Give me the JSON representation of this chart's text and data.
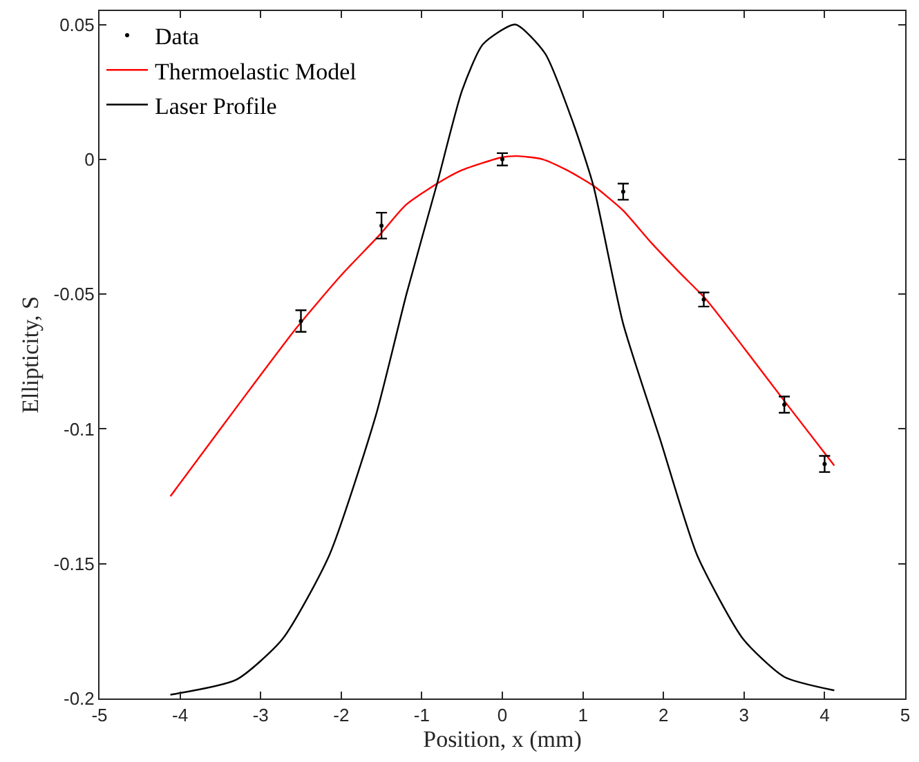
{
  "chart_data": {
    "type": "line",
    "xlabel": "Position, x (mm)",
    "ylabel": "Ellipticity, S",
    "xlim": [
      -5,
      5
    ],
    "xticks": [
      -5,
      -4,
      -3,
      -2,
      -1,
      0,
      1,
      2,
      3,
      4,
      5
    ],
    "ylim": [
      -0.2,
      0.055
    ],
    "yticks": [
      -0.2,
      -0.15,
      -0.1,
      -0.05,
      0,
      0.05
    ],
    "legend": "top left",
    "series": [
      {
        "name": "Data",
        "type": "scatter",
        "color": "#000000",
        "x": [
          -2.5,
          -1.5,
          0,
          1.5,
          2.5,
          3.5,
          4
        ],
        "values": [
          -0.06,
          -0.0246,
          0,
          -0.012,
          -0.052,
          -0.091,
          -0.113
        ],
        "errors": [
          0.004,
          0.0048,
          0.0023,
          0.003,
          0.0026,
          0.003,
          0.003
        ]
      },
      {
        "name": "Thermoelastic Model",
        "color": "#ff0000",
        "x": [
          -4.12,
          -3.5,
          -3.0,
          -2.56,
          -2.0,
          -1.51,
          -1.2,
          -0.81,
          -0.5,
          0.0,
          0.19,
          0.5,
          0.8,
          1.13,
          1.5,
          1.85,
          2.2,
          2.53,
          3.0,
          3.51,
          4.12
        ],
        "values": [
          -0.125,
          -0.1,
          -0.08,
          -0.0627,
          -0.043,
          -0.0276,
          -0.017,
          -0.009,
          -0.004,
          0.0008,
          0.0012,
          0.0,
          -0.004,
          -0.0098,
          -0.019,
          -0.031,
          -0.042,
          -0.052,
          -0.07,
          -0.09,
          -0.1136
        ]
      },
      {
        "name": "Laser Profile",
        "color": "#000000",
        "x": [
          -4.12,
          -3.3,
          -2.73,
          -2.15,
          -1.57,
          -1.19,
          -0.81,
          -0.5,
          -0.24,
          0.16,
          0.53,
          0.88,
          1.13,
          1.5,
          1.96,
          2.42,
          2.99,
          3.5,
          4.12
        ],
        "values": [
          -0.1986,
          -0.193,
          -0.178,
          -0.147,
          -0.095,
          -0.05,
          -0.009,
          0.0255,
          0.0427,
          0.05,
          0.0393,
          0.0134,
          -0.0098,
          -0.061,
          -0.104,
          -0.147,
          -0.178,
          -0.192,
          -0.197
        ]
      }
    ]
  }
}
